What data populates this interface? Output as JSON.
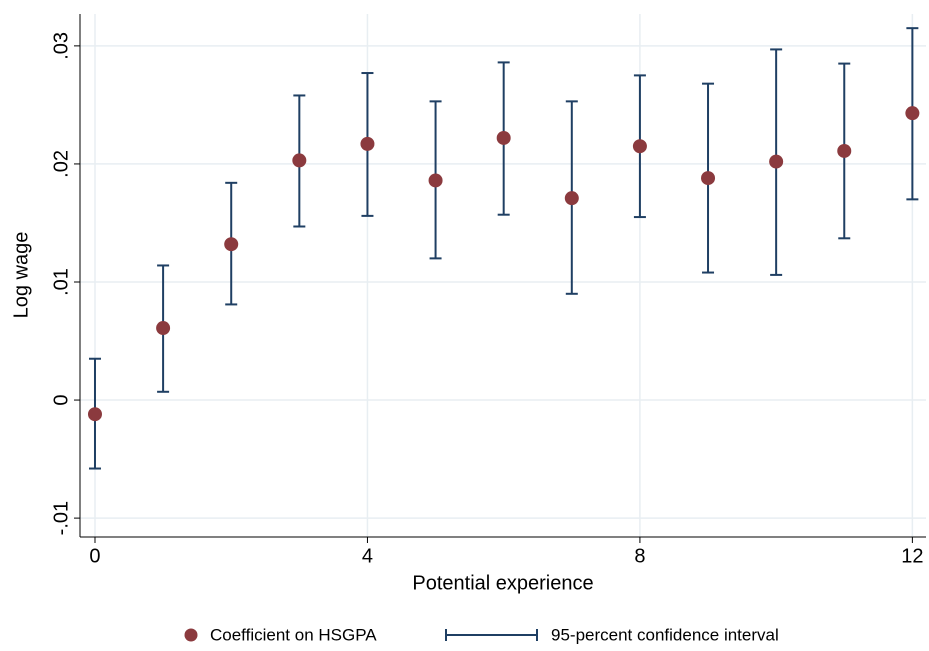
{
  "chart_data": {
    "type": "errorbar",
    "x_label": "Potential experience",
    "y_label": "Log wage",
    "x": [
      0,
      1,
      2,
      3,
      4,
      5,
      6,
      7,
      8,
      9,
      10,
      11,
      12
    ],
    "series": [
      {
        "name": "Coefficient on HSGPA",
        "color": "#8b3a3e",
        "values": [
          -0.0012,
          0.0061,
          0.0132,
          0.0203,
          0.0217,
          0.0186,
          0.0222,
          0.0171,
          0.0215,
          0.0188,
          0.0202,
          0.0211,
          0.0243
        ]
      }
    ],
    "ci": {
      "name": "95-percent confidence interval",
      "color": "#1f3f63",
      "lower": [
        -0.0058,
        0.0007,
        0.0081,
        0.0147,
        0.0156,
        0.012,
        0.0157,
        0.009,
        0.0155,
        0.0108,
        0.0106,
        0.0137,
        0.017
      ],
      "upper": [
        0.0035,
        0.0114,
        0.0184,
        0.0258,
        0.0277,
        0.0253,
        0.0286,
        0.0253,
        0.0275,
        0.0268,
        0.0297,
        0.0285,
        0.0315
      ]
    },
    "xlim": [
      -0.22,
      12.2
    ],
    "ylim": [
      -0.0116,
      0.0327
    ],
    "xticks": [
      0,
      4,
      8,
      12
    ],
    "yticks": [
      {
        "value": -0.01,
        "label": "-.01"
      },
      0,
      {
        "value": 0.01,
        "label": ".01"
      },
      {
        "value": 0.02,
        "label": ".02"
      },
      {
        "value": 0.03,
        "label": ".03"
      }
    ],
    "grid": true
  }
}
